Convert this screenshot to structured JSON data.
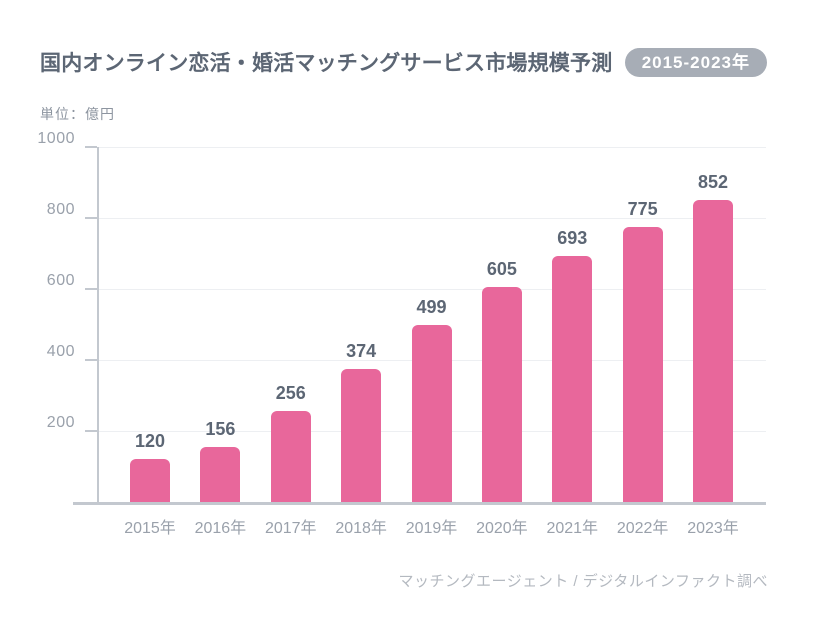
{
  "header": {
    "title": "国内オンライン恋活・婚活マッチングサービス市場規模予測",
    "badge": "2015-2023年"
  },
  "unit_label": "単位：億円",
  "footer": {
    "source": "マッチングエージェント / デジタルインファクト調べ"
  },
  "colors": {
    "bar": "#E8679B",
    "title_text": "#5C6674",
    "value_text": "#5C6674",
    "axis_label": "#9AA1AB",
    "axis_line": "#C3C8CF",
    "gridline": "#EDEFF2",
    "badge_bg": "#A7ADB6",
    "badge_text": "#FFFFFF",
    "footer_text": "#B4B9C0",
    "unit_text": "#8D95A0"
  },
  "chart_data": {
    "type": "bar",
    "title": "国内オンライン恋活・婚活マッチングサービス市場規模予測 2015-2023年",
    "unit": "億円",
    "categories": [
      "2015年",
      "2016年",
      "2017年",
      "2018年",
      "2019年",
      "2020年",
      "2021年",
      "2022年",
      "2023年"
    ],
    "values": [
      120,
      156,
      256,
      374,
      499,
      605,
      693,
      775,
      852
    ],
    "xlabel": "",
    "ylabel": "単位：億円",
    "ylim": [
      0,
      1000
    ],
    "yticks": [
      200,
      400,
      600,
      800,
      1000
    ],
    "grid": true,
    "legend": false,
    "bar_color": "#E8679B",
    "source": "マッチングエージェント / デジタルインファクト調べ"
  }
}
